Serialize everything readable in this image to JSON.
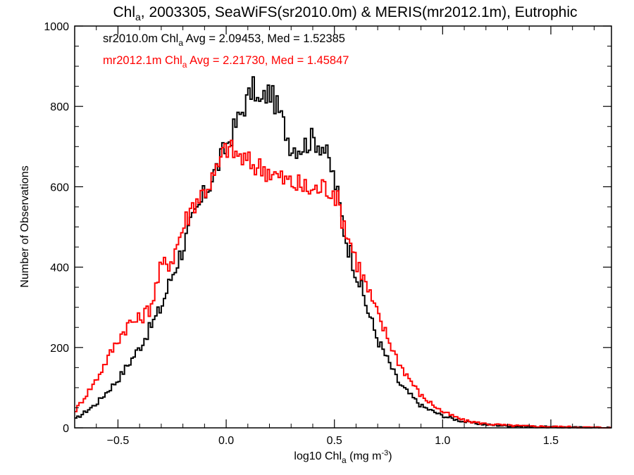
{
  "chart_data": {
    "type": "line",
    "title": {
      "pre": "Chl",
      "sub": "a",
      "post": ", 2003305, SeaWiFS(sr2010.0m) & MERIS(mr2012.1m), Eutrophic"
    },
    "xlabel": {
      "pre": "log10 Chl",
      "sub": "a",
      "mid": " (mg m",
      "sup": "-3",
      "post": ")"
    },
    "ylabel": "Number of Observations",
    "xlim": [
      -0.7,
      1.78
    ],
    "ylim": [
      0,
      1000
    ],
    "x_ticks": [
      -0.5,
      0.0,
      0.5,
      1.0,
      1.5
    ],
    "x_tick_labels": [
      "−0.5",
      "0.0",
      "0.5",
      "1.0",
      "1.5"
    ],
    "y_ticks": [
      0,
      200,
      400,
      600,
      800,
      1000
    ],
    "y_tick_labels": [
      "0",
      "200",
      "400",
      "600",
      "800",
      "1000"
    ],
    "grid": false,
    "step": "histogram",
    "annotations": [
      {
        "series": "sr2010.0m",
        "color": "#000000",
        "pre": "sr2010.0m Chl",
        "sub": "a",
        "post": " Avg = 2.09453, Med = 1.52385"
      },
      {
        "series": "mr2012.1m",
        "color": "#ff0000",
        "pre": "mr2012.1m Chl",
        "sub": "a",
        "post": " Avg = 2.21730, Med = 1.45847"
      }
    ],
    "series": [
      {
        "name": "sr2010.0m",
        "color": "#000000",
        "x": [
          -0.7,
          -0.6,
          -0.5,
          -0.45,
          -0.4,
          -0.35,
          -0.3,
          -0.25,
          -0.2,
          -0.15,
          -0.1,
          -0.05,
          0.0,
          0.05,
          0.1,
          0.13,
          0.15,
          0.2,
          0.25,
          0.3,
          0.35,
          0.4,
          0.45,
          0.5,
          0.55,
          0.6,
          0.65,
          0.7,
          0.8,
          0.9,
          1.0,
          1.1,
          1.2,
          1.3,
          1.4,
          1.5,
          1.6,
          1.78
        ],
        "y": [
          20,
          60,
          120,
          160,
          200,
          250,
          300,
          380,
          450,
          520,
          580,
          640,
          700,
          760,
          820,
          850,
          800,
          840,
          780,
          700,
          700,
          720,
          700,
          620,
          480,
          390,
          300,
          220,
          110,
          55,
          30,
          15,
          8,
          5,
          3,
          2,
          1,
          0
        ]
      },
      {
        "name": "mr2012.1m",
        "color": "#ff0000",
        "x": [
          -0.7,
          -0.6,
          -0.5,
          -0.45,
          -0.4,
          -0.35,
          -0.3,
          -0.25,
          -0.2,
          -0.15,
          -0.1,
          -0.05,
          0.0,
          0.05,
          0.1,
          0.15,
          0.2,
          0.25,
          0.3,
          0.35,
          0.4,
          0.45,
          0.5,
          0.55,
          0.6,
          0.65,
          0.7,
          0.8,
          0.9,
          1.0,
          1.1,
          1.2,
          1.3,
          1.4,
          1.5,
          1.6,
          1.78
        ],
        "y": [
          40,
          120,
          220,
          260,
          270,
          300,
          400,
          420,
          500,
          560,
          590,
          630,
          700,
          680,
          660,
          650,
          640,
          620,
          610,
          600,
          590,
          600,
          590,
          500,
          420,
          350,
          280,
          160,
          80,
          40,
          18,
          10,
          6,
          4,
          3,
          2,
          0
        ]
      }
    ]
  }
}
